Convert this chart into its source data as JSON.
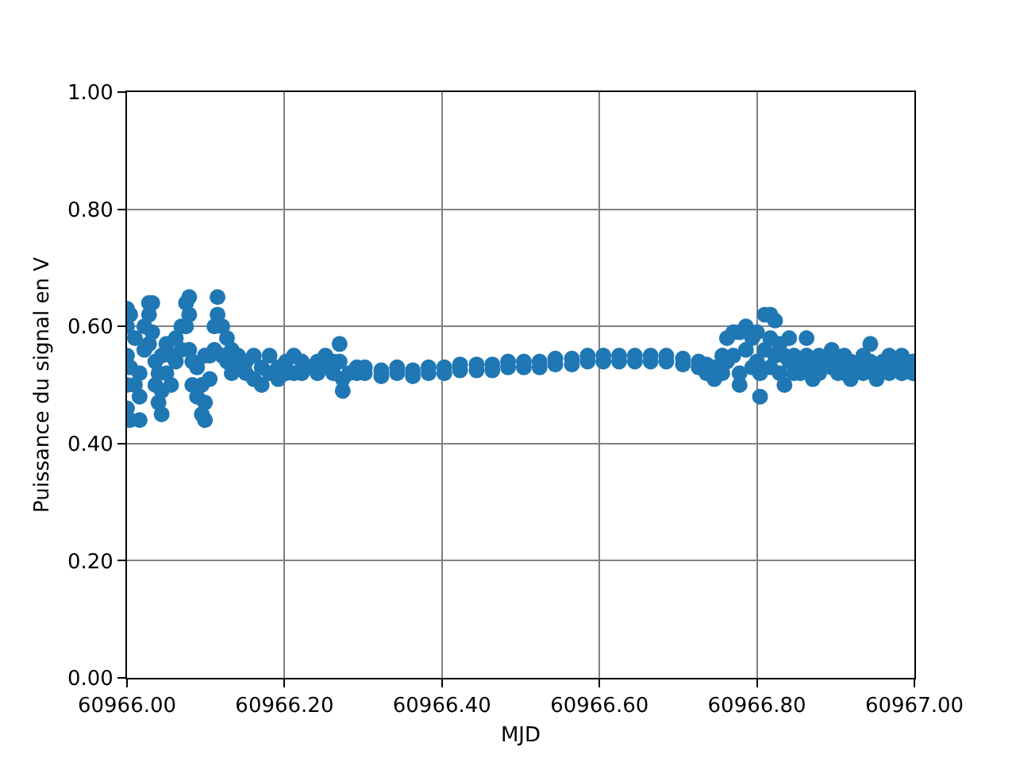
{
  "chart_data": {
    "type": "scatter",
    "xlabel": "MJD",
    "ylabel": "Puissance du signal en V",
    "x": [
      60966.0,
      60966.0,
      60966.0,
      60966.0,
      60966.0,
      60966.004,
      60966.004,
      60966.004,
      60966.01,
      60966.01,
      60966.016,
      60966.016,
      60966.016,
      60966.022,
      60966.022,
      60966.028,
      60966.028,
      60966.028,
      60966.032,
      60966.032,
      60966.036,
      60966.036,
      60966.04,
      60966.04,
      60966.044,
      60966.044,
      60966.044,
      60966.05,
      60966.05,
      60966.056,
      60966.056,
      60966.062,
      60966.062,
      60966.069,
      60966.069,
      60966.075,
      60966.075,
      60966.079,
      60966.079,
      60966.079,
      60966.083,
      60966.083,
      60966.089,
      60966.089,
      60966.095,
      60966.095,
      60966.099,
      60966.099,
      60966.099,
      60966.105,
      60966.105,
      60966.111,
      60966.111,
      60966.115,
      60966.115,
      60966.121,
      60966.121,
      60966.127,
      60966.127,
      60966.133,
      60966.133,
      60966.141,
      60966.141,
      60966.151,
      60966.151,
      60966.161,
      60966.161,
      60966.171,
      60966.171,
      60966.181,
      60966.181,
      60966.192,
      60966.192,
      60966.202,
      60966.202,
      60966.212,
      60966.212,
      60966.222,
      60966.222,
      60966.232,
      60966.242,
      60966.242,
      60966.252,
      60966.252,
      60966.262,
      60966.262,
      60966.27,
      60966.27,
      60966.274,
      60966.274,
      60966.282,
      60966.292,
      60966.292,
      60966.302,
      60966.302,
      60966.323,
      60966.323,
      60966.343,
      60966.343,
      60966.363,
      60966.363,
      60966.383,
      60966.383,
      60966.403,
      60966.403,
      60966.423,
      60966.423,
      60966.444,
      60966.444,
      60966.464,
      60966.464,
      60966.484,
      60966.484,
      60966.504,
      60966.504,
      60966.524,
      60966.524,
      60966.544,
      60966.544,
      60966.565,
      60966.565,
      60966.585,
      60966.585,
      60966.605,
      60966.605,
      60966.625,
      60966.625,
      60966.645,
      60966.645,
      60966.665,
      60966.665,
      60966.685,
      60966.685,
      60966.706,
      60966.706,
      60966.726,
      60966.726,
      60966.736,
      60966.736,
      60966.746,
      60966.746,
      60966.756,
      60966.756,
      60966.762,
      60966.762,
      60966.77,
      60966.77,
      60966.778,
      60966.778,
      60966.778,
      60966.786,
      60966.786,
      60966.794,
      60966.794,
      60966.8,
      60966.8,
      60966.804,
      60966.804,
      60966.81,
      60966.81,
      60966.817,
      60966.817,
      60966.817,
      60966.823,
      60966.823,
      60966.829,
      60966.829,
      60966.835,
      60966.835,
      60966.841,
      60966.841,
      60966.847,
      60966.847,
      60966.855,
      60966.855,
      60966.863,
      60966.863,
      60966.871,
      60966.871,
      60966.879,
      60966.879,
      60966.887,
      60966.895,
      60966.895,
      60966.903,
      60966.903,
      60966.911,
      60966.911,
      60966.919,
      60966.919,
      60966.927,
      60966.935,
      60966.935,
      60966.944,
      60966.944,
      60966.952,
      60966.952,
      60966.96,
      60966.968,
      60966.968,
      60966.976,
      60966.984,
      60966.984,
      60966.992,
      60966.998,
      60966.998
    ],
    "series": [
      {
        "color": "#1f77b4",
        "values": [
          0.63,
          0.6,
          0.55,
          0.5,
          0.46,
          0.62,
          0.53,
          0.44,
          0.58,
          0.5,
          0.44,
          0.48,
          0.52,
          0.56,
          0.6,
          0.64,
          0.62,
          0.57,
          0.64,
          0.59,
          0.54,
          0.5,
          0.47,
          0.52,
          0.45,
          0.49,
          0.55,
          0.52,
          0.57,
          0.55,
          0.5,
          0.54,
          0.58,
          0.6,
          0.56,
          0.64,
          0.6,
          0.65,
          0.62,
          0.56,
          0.54,
          0.5,
          0.48,
          0.53,
          0.45,
          0.5,
          0.44,
          0.47,
          0.55,
          0.55,
          0.51,
          0.6,
          0.56,
          0.65,
          0.62,
          0.6,
          0.55,
          0.58,
          0.54,
          0.56,
          0.52,
          0.53,
          0.55,
          0.52,
          0.54,
          0.51,
          0.55,
          0.53,
          0.5,
          0.55,
          0.52,
          0.53,
          0.51,
          0.54,
          0.52,
          0.55,
          0.52,
          0.52,
          0.54,
          0.53,
          0.52,
          0.54,
          0.53,
          0.55,
          0.54,
          0.52,
          0.57,
          0.54,
          0.51,
          0.49,
          0.52,
          0.53,
          0.52,
          0.52,
          0.53,
          0.515,
          0.525,
          0.52,
          0.53,
          0.515,
          0.525,
          0.52,
          0.53,
          0.52,
          0.53,
          0.525,
          0.535,
          0.525,
          0.535,
          0.525,
          0.535,
          0.53,
          0.54,
          0.53,
          0.54,
          0.53,
          0.54,
          0.535,
          0.545,
          0.535,
          0.545,
          0.54,
          0.55,
          0.54,
          0.55,
          0.54,
          0.55,
          0.54,
          0.55,
          0.54,
          0.55,
          0.54,
          0.55,
          0.535,
          0.545,
          0.53,
          0.54,
          0.52,
          0.535,
          0.51,
          0.53,
          0.55,
          0.52,
          0.58,
          0.54,
          0.59,
          0.55,
          0.59,
          0.52,
          0.5,
          0.6,
          0.56,
          0.58,
          0.53,
          0.59,
          0.54,
          0.48,
          0.52,
          0.62,
          0.56,
          0.62,
          0.58,
          0.53,
          0.61,
          0.55,
          0.57,
          0.52,
          0.5,
          0.55,
          0.58,
          0.54,
          0.55,
          0.52,
          0.54,
          0.52,
          0.58,
          0.55,
          0.53,
          0.51,
          0.55,
          0.52,
          0.54,
          0.56,
          0.53,
          0.52,
          0.54,
          0.55,
          0.52,
          0.51,
          0.54,
          0.53,
          0.55,
          0.52,
          0.57,
          0.54,
          0.52,
          0.51,
          0.54,
          0.55,
          0.52,
          0.53,
          0.55,
          0.52,
          0.53,
          0.54,
          0.52
        ]
      }
    ],
    "marker": "circle",
    "xlim": [
      60966.0,
      60967.0
    ],
    "xticks": [
      {
        "value": 60966.0,
        "label": "60966.00"
      },
      {
        "value": 60966.2,
        "label": "60966.20"
      },
      {
        "value": 60966.4,
        "label": "60966.40"
      },
      {
        "value": 60966.6,
        "label": "60966.60"
      },
      {
        "value": 60966.8,
        "label": "60966.80"
      },
      {
        "value": 60967.0,
        "label": "60967.00"
      }
    ],
    "ylim": [
      0,
      1
    ],
    "yticks": [
      {
        "value": 0,
        "label": "0.00"
      },
      {
        "value": 0.2,
        "label": "0.20"
      },
      {
        "value": 0.4,
        "label": "0.40"
      },
      {
        "value": 0.6,
        "label": "0.60"
      },
      {
        "value": 0.8,
        "label": "0.80"
      },
      {
        "value": 1,
        "label": "1.00"
      }
    ],
    "grid": true
  }
}
